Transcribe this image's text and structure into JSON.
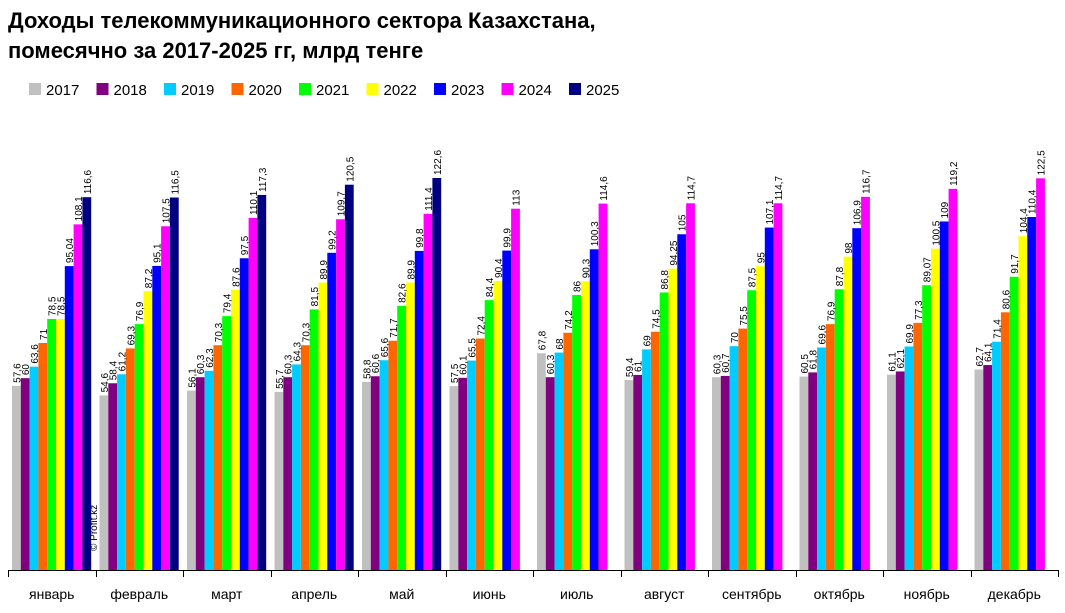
{
  "chart_data": {
    "type": "bar",
    "title_lines": [
      "Доходы телекоммуникационного сектора Казахстана,",
      "помесячно за 2017-2025 гг, млрд тенге"
    ],
    "watermark": "© Profit.kz",
    "xlabel": "",
    "ylabel": "",
    "ylim": [
      0,
      130
    ],
    "grid": false,
    "legend_position": "top-left",
    "categories": [
      "январь",
      "февраль",
      "март",
      "апрель",
      "май",
      "июнь",
      "июль",
      "август",
      "сентябрь",
      "октябрь",
      "ноябрь",
      "декабрь"
    ],
    "series": [
      {
        "name": "2017",
        "color": "#c0c0c0",
        "values": [
          57.6,
          54.6,
          56.1,
          55.7,
          58.8,
          57.5,
          67.8,
          59.4,
          60.3,
          60.5,
          61.1,
          62.7
        ],
        "labels": [
          "57,6",
          "54,6",
          "56,1",
          "55,7",
          "58,8",
          "57,5",
          "67,8",
          "59,4",
          "60,3",
          "60,5",
          "61,1",
          "62,7"
        ]
      },
      {
        "name": "2018",
        "color": "#800080",
        "values": [
          60,
          58.4,
          60.3,
          60.3,
          60.6,
          60.1,
          60.3,
          61,
          60.7,
          61.8,
          62.1,
          64.1
        ],
        "labels": [
          "60",
          "58,4",
          "60,3",
          "60,3",
          "60,6",
          "60,1",
          "60,3",
          "61",
          "60,7",
          "61,8",
          "62,1",
          "64,1"
        ]
      },
      {
        "name": "2019",
        "color": "#00ccff",
        "values": [
          63.6,
          61.2,
          62.3,
          64.3,
          65.6,
          65.5,
          68,
          69,
          70,
          69.6,
          69.9,
          71.4
        ],
        "labels": [
          "63,6",
          "61,2",
          "62,3",
          "64,3",
          "65,6",
          "65,5",
          "68",
          "69",
          "70",
          "69,6",
          "69,9",
          "71,4"
        ]
      },
      {
        "name": "2020",
        "color": "#ff6600",
        "values": [
          71,
          69.3,
          70.3,
          70.3,
          71.7,
          72.4,
          74.2,
          74.5,
          75.5,
          76.9,
          77.3,
          80.6
        ],
        "labels": [
          "71",
          "69,3",
          "70,3",
          "70,3",
          "71,7",
          "72,4",
          "74,2",
          "74,5",
          "75,5",
          "76,9",
          "77,3",
          "80,6"
        ]
      },
      {
        "name": "2021",
        "color": "#00ff00",
        "values": [
          78.5,
          76.9,
          79.4,
          81.5,
          82.6,
          84.4,
          86,
          86.8,
          87.5,
          87.8,
          89.07,
          91.7
        ],
        "labels": [
          "78,5",
          "76,9",
          "79,4",
          "81,5",
          "82,6",
          "84,4",
          "86",
          "86,8",
          "87,5",
          "87,8",
          "89,07",
          "91,7"
        ]
      },
      {
        "name": "2022",
        "color": "#ffff00",
        "values": [
          78.5,
          87.2,
          87.6,
          89.9,
          89.9,
          90.4,
          90.3,
          94.25,
          95,
          98,
          100.5,
          104.4
        ],
        "labels": [
          "78,5",
          "87,2",
          "87,6",
          "89,9",
          "89,9",
          "90,4",
          "90,3",
          "94,25",
          "95",
          "98",
          "100,5",
          "104,4"
        ]
      },
      {
        "name": "2023",
        "color": "#0000ff",
        "values": [
          95.04,
          95.1,
          97.5,
          99.2,
          99.8,
          99.9,
          100.3,
          105,
          107.1,
          106.9,
          109,
          110.4
        ],
        "labels": [
          "95,04",
          "95,1",
          "97,5",
          "99,2",
          "99,8",
          "99,9",
          "100,3",
          "105",
          "107,1",
          "106,9",
          "109",
          "110,4"
        ]
      },
      {
        "name": "2024",
        "color": "#ff00ff",
        "values": [
          108.1,
          107.5,
          110.1,
          109.7,
          111.4,
          113,
          114.6,
          114.7,
          114.7,
          116.7,
          119.2,
          122.5
        ],
        "labels": [
          "108,1",
          "107,5",
          "110,1",
          "109,7",
          "111,4",
          "113",
          "114,6",
          "114,7",
          "114,7",
          "116,7",
          "119,2",
          "122,5"
        ]
      },
      {
        "name": "2025",
        "color": "#000080",
        "values": [
          116.6,
          116.5,
          117.3,
          120.5,
          122.6,
          null,
          null,
          null,
          null,
          null,
          null,
          null
        ],
        "labels": [
          "116,6",
          "116,5",
          "117,3",
          "120,5",
          "122,6",
          "",
          "",
          "",
          "",
          "",
          "",
          ""
        ]
      }
    ]
  }
}
